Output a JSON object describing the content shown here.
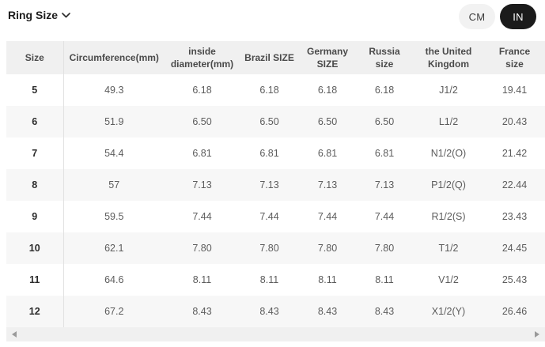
{
  "header": {
    "title": "Ring Size"
  },
  "unit_toggle": {
    "cm_label": "CM",
    "in_label": "IN",
    "selected": "IN"
  },
  "colors": {
    "active_pill_bg": "#1b1b1b",
    "active_pill_text": "#ffffff",
    "inactive_pill_bg": "#f2f2f2",
    "table_header_bg": "#f0f0f0",
    "alt_row_bg": "#f7f7f7",
    "body_text": "#5c5c5c"
  },
  "icons": {
    "chevron_down": "chevron-down-icon",
    "scroll_left": "scroll-left-arrow-icon",
    "scroll_right": "scroll-right-arrow-icon"
  },
  "table": {
    "columns": [
      "Size",
      "Circumference(mm)",
      "inside diameter(mm)",
      "Brazil SIZE",
      "Germany SIZE",
      "Russia size",
      "the United Kingdom",
      "France size"
    ],
    "rows": [
      [
        "5",
        "49.3",
        "6.18",
        "6.18",
        "6.18",
        "6.18",
        "J1/2",
        "19.41"
      ],
      [
        "6",
        "51.9",
        "6.50",
        "6.50",
        "6.50",
        "6.50",
        "L1/2",
        "20.43"
      ],
      [
        "7",
        "54.4",
        "6.81",
        "6.81",
        "6.81",
        "6.81",
        "N1/2(O)",
        "21.42"
      ],
      [
        "8",
        "57",
        "7.13",
        "7.13",
        "7.13",
        "7.13",
        "P1/2(Q)",
        "22.44"
      ],
      [
        "9",
        "59.5",
        "7.44",
        "7.44",
        "7.44",
        "7.44",
        "R1/2(S)",
        "23.43"
      ],
      [
        "10",
        "62.1",
        "7.80",
        "7.80",
        "7.80",
        "7.80",
        "T1/2",
        "24.45"
      ],
      [
        "11",
        "64.6",
        "8.11",
        "8.11",
        "8.11",
        "8.11",
        "V1/2",
        "25.43"
      ],
      [
        "12",
        "67.2",
        "8.43",
        "8.43",
        "8.43",
        "8.43",
        "X1/2(Y)",
        "26.46"
      ]
    ]
  }
}
